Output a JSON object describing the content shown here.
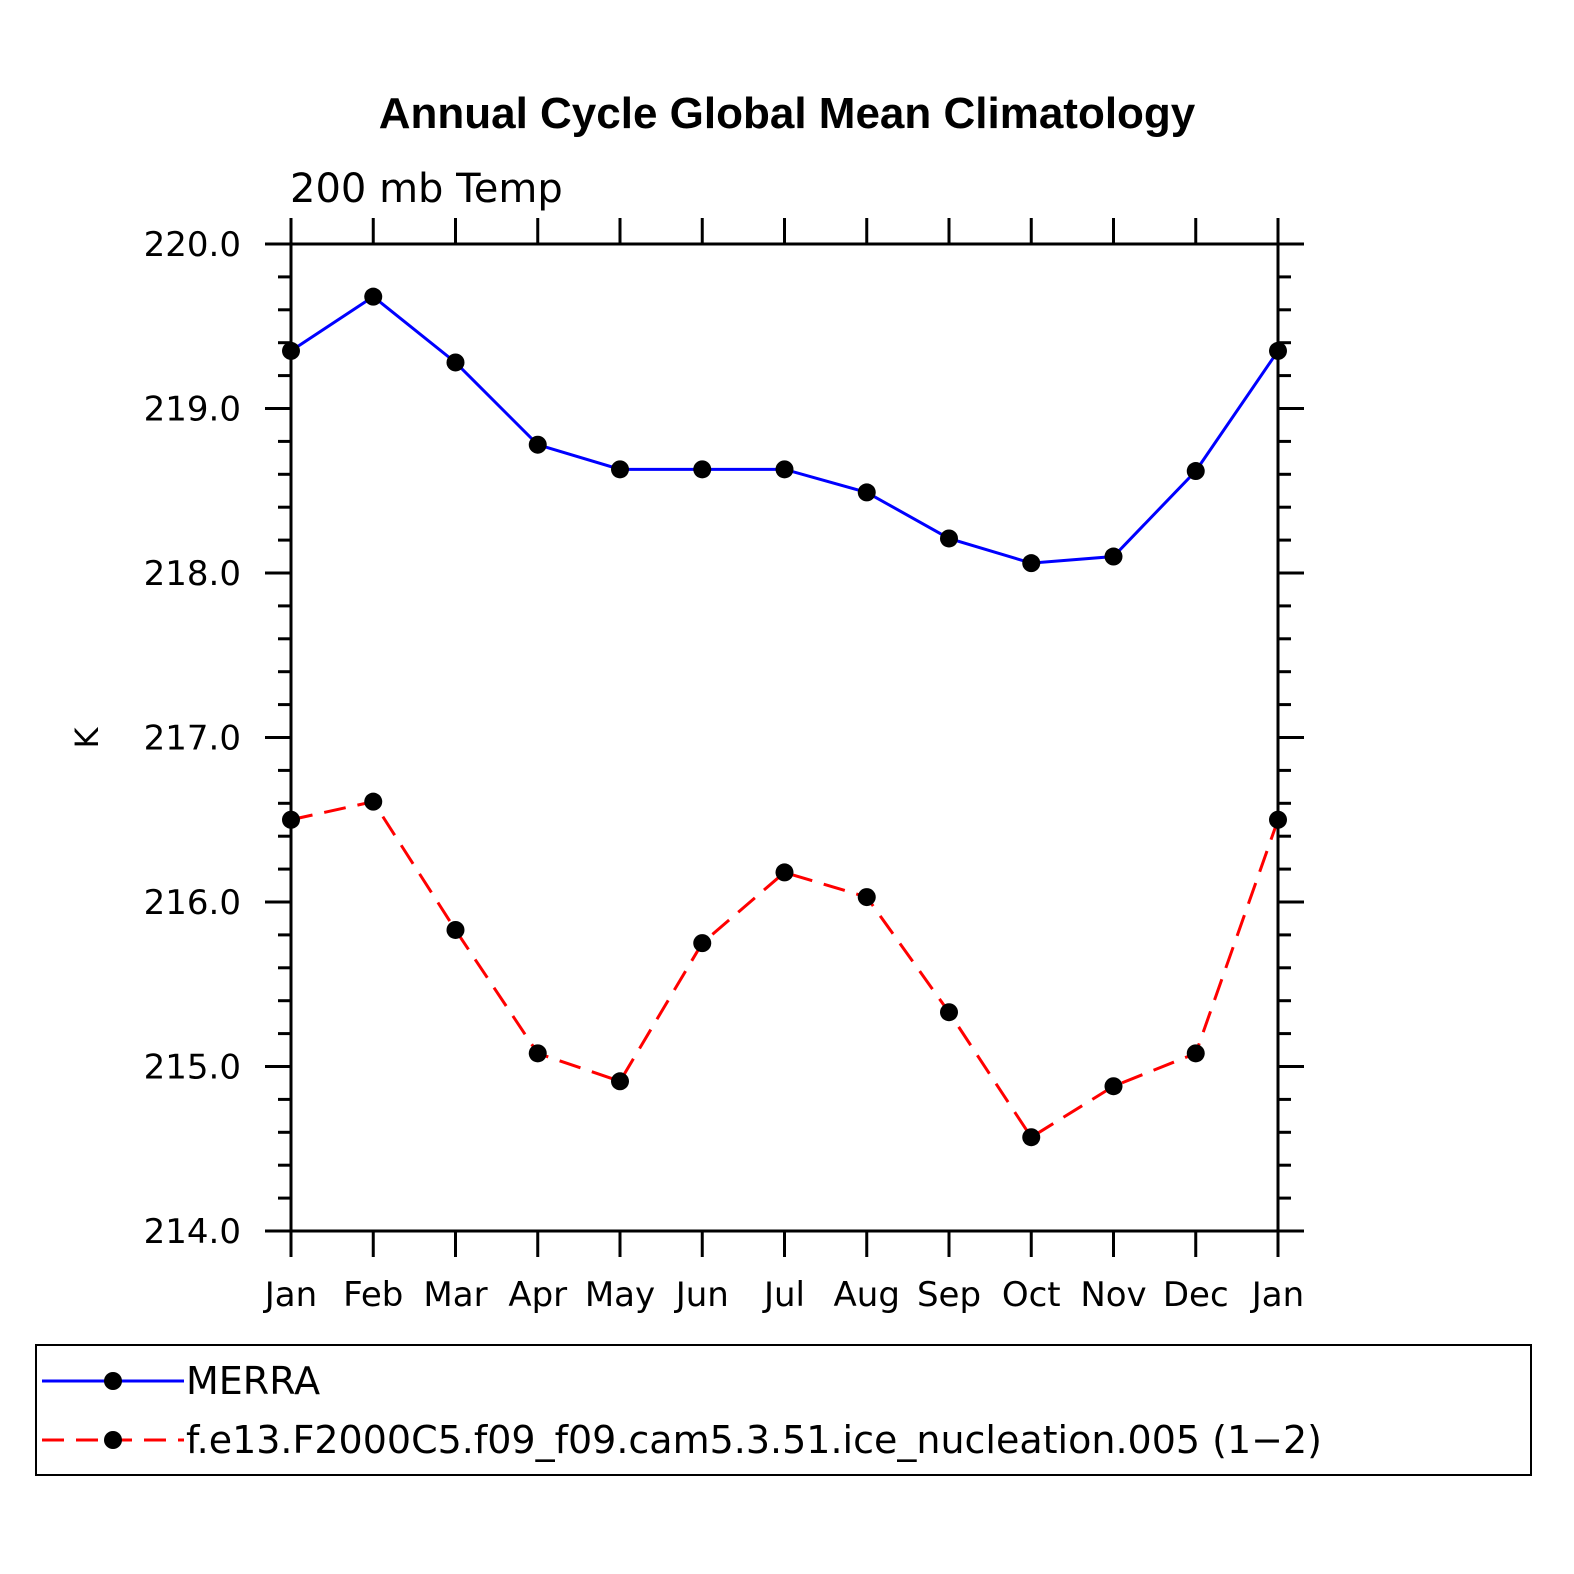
{
  "chart_data": {
    "type": "line",
    "title": "Annual Cycle Global Mean Climatology",
    "subtitle": "200 mb Temp",
    "ylabel": "K",
    "xlabel": "",
    "categories": [
      "Jan",
      "Feb",
      "Mar",
      "Apr",
      "May",
      "Jun",
      "Jul",
      "Aug",
      "Sep",
      "Oct",
      "Nov",
      "Dec",
      "Jan"
    ],
    "ylim": [
      214.0,
      220.0
    ],
    "yticks": [
      "214.0",
      "215.0",
      "216.0",
      "217.0",
      "218.0",
      "219.0",
      "220.0"
    ],
    "grid": false,
    "legend_position": "bottom",
    "series": [
      {
        "name": "MERRA",
        "color": "#0000ff",
        "dash": "solid",
        "values": [
          219.35,
          219.68,
          219.28,
          218.78,
          218.63,
          218.63,
          218.63,
          218.49,
          218.21,
          218.06,
          218.1,
          218.62,
          219.35
        ]
      },
      {
        "name": "f.e13.F2000C5.f09_f09.cam5.3.51.ice_nucleation.005 (1−2)",
        "color": "#ff0000",
        "dash": "dashed",
        "values": [
          216.5,
          216.61,
          215.83,
          215.08,
          214.91,
          215.75,
          216.18,
          216.03,
          215.33,
          214.57,
          214.88,
          215.08,
          216.5
        ]
      }
    ]
  }
}
